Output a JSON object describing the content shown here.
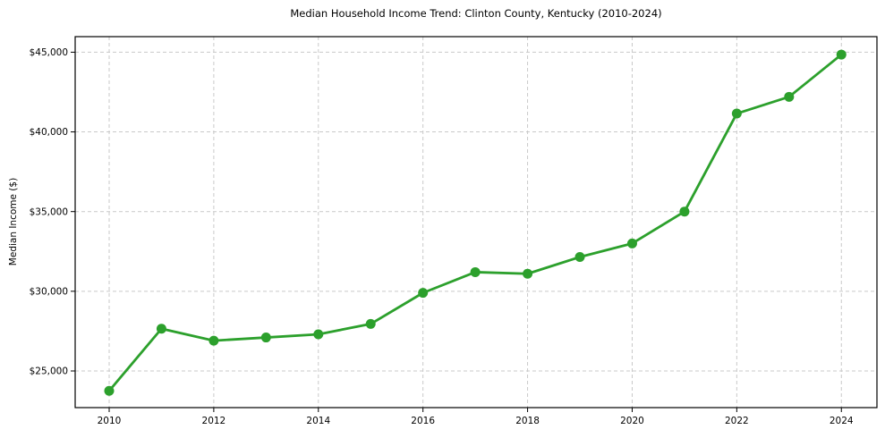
{
  "chart_data": {
    "type": "line",
    "title": "Median Household Income Trend: Clinton County, Kentucky (2010-2024)",
    "ylabel": "Median Income ($)",
    "xlabel": "",
    "series_name": "Median household income",
    "x": [
      2010,
      2011,
      2012,
      2013,
      2014,
      2015,
      2016,
      2017,
      2018,
      2019,
      2020,
      2021,
      2022,
      2023,
      2024
    ],
    "values": [
      23750,
      27650,
      26900,
      27100,
      27300,
      27950,
      29900,
      31200,
      31100,
      32150,
      33000,
      35000,
      41150,
      42200,
      44850
    ],
    "xticks": {
      "values": [
        2010,
        2012,
        2014,
        2016,
        2018,
        2020,
        2022,
        2024
      ],
      "labels": [
        "2010",
        "2012",
        "2014",
        "2016",
        "2018",
        "2020",
        "2022",
        "2024"
      ]
    },
    "yticks": {
      "values": [
        25000,
        30000,
        35000,
        40000,
        45000
      ],
      "labels": [
        "$25,000",
        "$30,000",
        "$35,000",
        "$40,000",
        "$45,000"
      ]
    },
    "xlim": [
      2009.35,
      2024.68
    ],
    "ylim": [
      22700,
      45976
    ],
    "grid": true,
    "grid_style": "dashed",
    "legend": false,
    "line_color": "#2ca02c",
    "grid_color": "#c9c9c9",
    "spine_color": "#000000",
    "marker": "o"
  }
}
